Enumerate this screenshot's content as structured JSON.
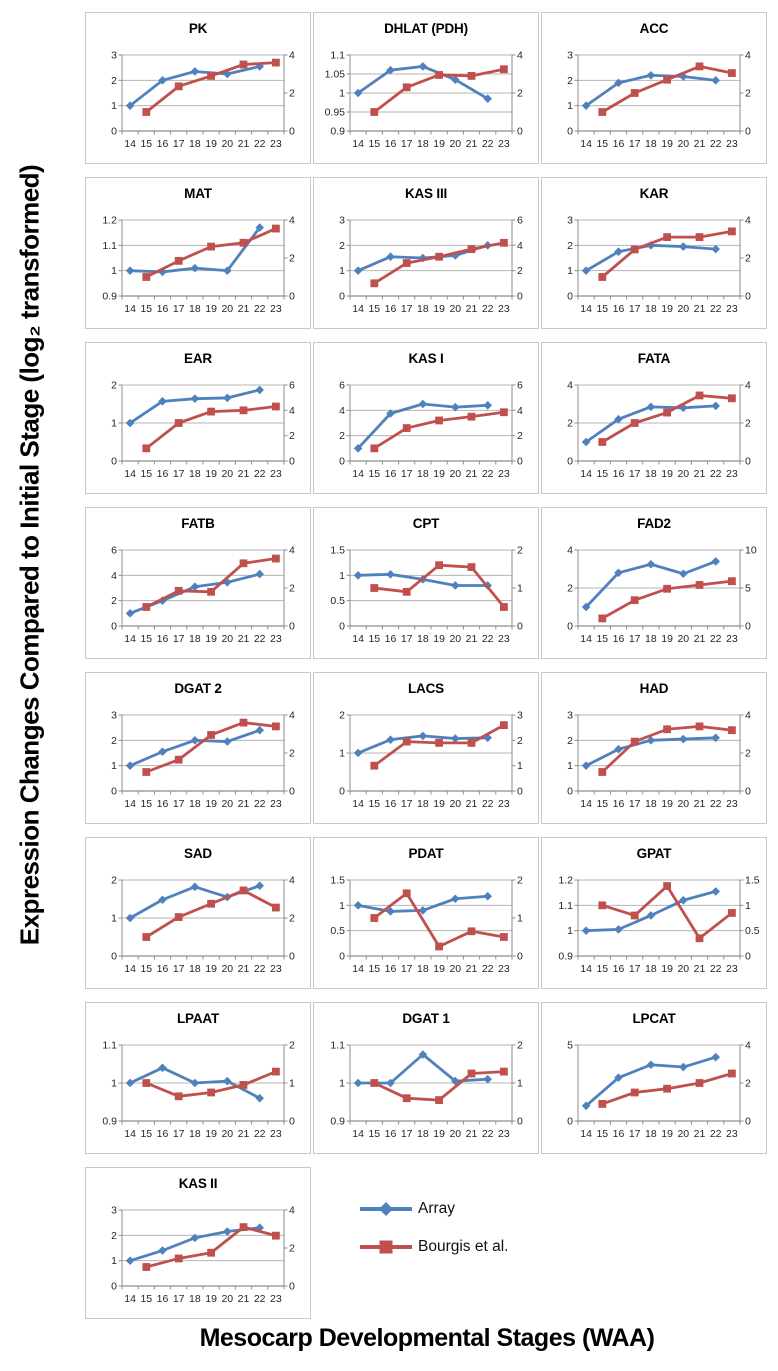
{
  "figure": {
    "y_axis_label": "Expression Changes Compared to Initial Stage (log₂ transformed)",
    "x_axis_label": "Mesocarp Developmental Stages (WAA)"
  },
  "colors": {
    "array_blue": "#4F81BD",
    "bourgis_red": "#C0504D",
    "gridline": "#b5b5b5",
    "axis_line": "#8e8e8e",
    "panel_border": "#c8c8c8",
    "tick_text": "#262626"
  },
  "chart_data": {
    "type": "line",
    "x_categories": [
      14,
      15,
      16,
      17,
      18,
      19,
      20,
      21,
      22,
      23
    ],
    "array_stages": [
      14,
      16,
      18,
      20,
      22
    ],
    "bourgis_stages": [
      15,
      17,
      19,
      21,
      23
    ],
    "left_axis_series": "Array",
    "right_axis_series": "Bourgis et al.",
    "series_meta": [
      {
        "name": "Array",
        "color": "#4F81BD",
        "marker": "diamond",
        "axis": "left"
      },
      {
        "name": "Bourgis et al.",
        "color": "#C0504D",
        "marker": "square",
        "axis": "right"
      }
    ],
    "panels": [
      {
        "title": "PK",
        "left_ticks": [
          0,
          1,
          2,
          3
        ],
        "right_ticks": [
          0,
          2,
          4
        ],
        "array": [
          1,
          2,
          2.35,
          2.25,
          2.55
        ],
        "bourgis": [
          1,
          2.35,
          2.9,
          3.5,
          3.6
        ]
      },
      {
        "title": "DHLAT (PDH)",
        "left_ticks": [
          0.9,
          0.95,
          1,
          1.05,
          1.1
        ],
        "right_ticks": [
          0,
          2,
          4
        ],
        "array": [
          1,
          1.06,
          1.07,
          1.035,
          0.985
        ],
        "bourgis": [
          1,
          2.3,
          2.95,
          2.9,
          3.25
        ]
      },
      {
        "title": "ACC",
        "left_ticks": [
          0,
          1,
          2,
          3
        ],
        "right_ticks": [
          0,
          2,
          4
        ],
        "array": [
          1,
          1.9,
          2.2,
          2.15,
          2
        ],
        "bourgis": [
          1,
          2,
          2.7,
          3.4,
          3.05
        ]
      },
      {
        "title": "MAT",
        "left_ticks": [
          0.9,
          1,
          1.1,
          1.2
        ],
        "right_ticks": [
          0,
          2,
          4
        ],
        "array": [
          1,
          0.995,
          1.01,
          1,
          1.17
        ],
        "bourgis": [
          1,
          1.85,
          2.6,
          2.8,
          3.55
        ]
      },
      {
        "title": "KAS III",
        "left_ticks": [
          0,
          1,
          2,
          3
        ],
        "right_ticks": [
          0,
          2,
          4,
          6
        ],
        "array": [
          1,
          1.55,
          1.5,
          1.6,
          2
        ],
        "bourgis": [
          1,
          2.6,
          3.1,
          3.7,
          4.2
        ]
      },
      {
        "title": "KAR",
        "left_ticks": [
          0,
          1,
          2,
          3
        ],
        "right_ticks": [
          0,
          2,
          4
        ],
        "array": [
          1,
          1.75,
          2,
          1.95,
          1.85
        ],
        "bourgis": [
          1,
          2.45,
          3.1,
          3.1,
          3.4
        ]
      },
      {
        "title": "EAR",
        "left_ticks": [
          0,
          1,
          2
        ],
        "right_ticks": [
          0,
          2,
          4,
          6
        ],
        "array": [
          1,
          1.57,
          1.64,
          1.66,
          1.87
        ],
        "bourgis": [
          1,
          3,
          3.9,
          4,
          4.3
        ]
      },
      {
        "title": "KAS I",
        "left_ticks": [
          0,
          2,
          4,
          6
        ],
        "right_ticks": [
          0,
          2,
          4,
          6
        ],
        "array": [
          1,
          3.75,
          4.5,
          4.25,
          4.4
        ],
        "bourgis": [
          1,
          2.6,
          3.2,
          3.5,
          3.85
        ]
      },
      {
        "title": "FATA",
        "left_ticks": [
          0,
          2,
          4
        ],
        "right_ticks": [
          0,
          2,
          4
        ],
        "array": [
          1,
          2.2,
          2.85,
          2.8,
          2.9
        ],
        "bourgis": [
          1,
          2,
          2.55,
          3.45,
          3.3
        ]
      },
      {
        "title": "FATB",
        "left_ticks": [
          0,
          2,
          4,
          6
        ],
        "right_ticks": [
          0,
          2,
          4
        ],
        "array": [
          1,
          2,
          3.1,
          3.45,
          4.1
        ],
        "bourgis": [
          1,
          1.85,
          1.8,
          3.3,
          3.55
        ]
      },
      {
        "title": "CPT",
        "left_ticks": [
          0,
          0.5,
          1,
          1.5
        ],
        "right_ticks": [
          0,
          1,
          2
        ],
        "array": [
          1,
          1.02,
          0.92,
          0.8,
          0.8
        ],
        "bourgis": [
          1,
          0.9,
          1.6,
          1.55,
          0.5
        ]
      },
      {
        "title": "FAD2",
        "left_ticks": [
          0,
          2,
          4
        ],
        "right_ticks": [
          0,
          5,
          10
        ],
        "array": [
          1,
          2.8,
          3.25,
          2.75,
          3.4
        ],
        "bourgis": [
          1,
          3.4,
          4.9,
          5.4,
          5.9
        ]
      },
      {
        "title": "DGAT 2",
        "left_ticks": [
          0,
          1,
          2,
          3
        ],
        "right_ticks": [
          0,
          2,
          4
        ],
        "array": [
          1,
          1.55,
          2,
          1.95,
          2.4
        ],
        "bourgis": [
          1,
          1.65,
          2.95,
          3.6,
          3.4
        ]
      },
      {
        "title": "LACS",
        "left_ticks": [
          0,
          1,
          2
        ],
        "right_ticks": [
          0,
          1,
          2,
          3
        ],
        "array": [
          1,
          1.35,
          1.45,
          1.38,
          1.4
        ],
        "bourgis": [
          1,
          1.95,
          1.9,
          1.9,
          2.6
        ]
      },
      {
        "title": "HAD",
        "left_ticks": [
          0,
          1,
          2,
          3
        ],
        "right_ticks": [
          0,
          2,
          4
        ],
        "array": [
          1,
          1.65,
          2,
          2.05,
          2.1
        ],
        "bourgis": [
          1,
          2.6,
          3.25,
          3.4,
          3.2
        ]
      },
      {
        "title": "SAD",
        "left_ticks": [
          0,
          1,
          2
        ],
        "right_ticks": [
          0,
          2,
          4
        ],
        "array": [
          1,
          1.48,
          1.82,
          1.55,
          1.85
        ],
        "bourgis": [
          1,
          2.05,
          2.75,
          3.45,
          2.55
        ]
      },
      {
        "title": "PDAT",
        "left_ticks": [
          0,
          0.5,
          1,
          1.5
        ],
        "right_ticks": [
          0,
          1,
          2
        ],
        "array": [
          1,
          0.88,
          0.9,
          1.13,
          1.18
        ],
        "bourgis": [
          1,
          1.65,
          0.25,
          0.65,
          0.5
        ]
      },
      {
        "title": "GPAT",
        "left_ticks": [
          0.9,
          1,
          1.1,
          1.2
        ],
        "right_ticks": [
          0,
          0.5,
          1,
          1.5
        ],
        "array": [
          1,
          1.005,
          1.06,
          1.12,
          1.155
        ],
        "bourgis": [
          1,
          0.8,
          1.38,
          0.35,
          0.85
        ]
      },
      {
        "title": "LPAAT",
        "left_ticks": [
          0.9,
          1,
          1.1
        ],
        "right_ticks": [
          0,
          1,
          2
        ],
        "array": [
          1,
          1.04,
          1,
          1.005,
          0.96
        ],
        "bourgis": [
          1,
          0.65,
          0.75,
          0.95,
          1.3
        ]
      },
      {
        "title": "DGAT 1",
        "left_ticks": [
          0.9,
          1,
          1.1
        ],
        "right_ticks": [
          0,
          1,
          2
        ],
        "array": [
          1,
          1,
          1.075,
          1.005,
          1.01
        ],
        "bourgis": [
          1,
          0.6,
          0.55,
          1.25,
          1.3
        ]
      },
      {
        "title": "LPCAT",
        "left_ticks": [
          0,
          5
        ],
        "right_ticks": [
          0,
          2,
          4
        ],
        "array": [
          1,
          2.85,
          3.7,
          3.55,
          4.2
        ],
        "bourgis": [
          0.9,
          1.5,
          1.7,
          2,
          2.5
        ]
      },
      {
        "title": "KAS II",
        "left_ticks": [
          0,
          1,
          2,
          3
        ],
        "right_ticks": [
          0,
          2,
          4
        ],
        "array": [
          1,
          1.4,
          1.9,
          2.15,
          2.3
        ],
        "bourgis": [
          1,
          1.45,
          1.75,
          3.1,
          2.65
        ]
      }
    ]
  }
}
